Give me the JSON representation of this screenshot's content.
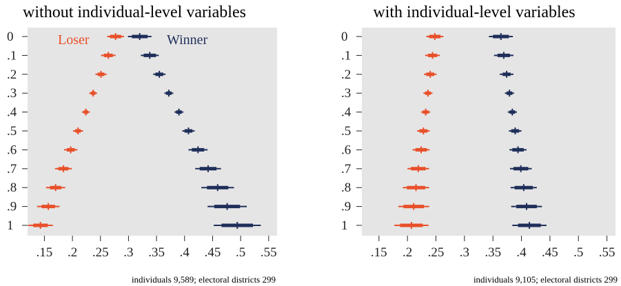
{
  "chart_data": [
    {
      "type": "scatter",
      "title": "without individual-level variables",
      "xlabel": "",
      "ylabel": "",
      "xlim": [
        0.12,
        0.565
      ],
      "x_ticks": [
        ".15",
        ".2",
        ".25",
        ".3",
        ".35",
        ".4",
        ".45",
        ".5",
        ".55"
      ],
      "x_tick_values": [
        0.15,
        0.2,
        0.25,
        0.3,
        0.35,
        0.4,
        0.45,
        0.5,
        0.55
      ],
      "y_ticks": [
        "0",
        ".1",
        ".2",
        ".3",
        ".4",
        ".5",
        ".6",
        ".7",
        ".8",
        ".9",
        "1"
      ],
      "legend_position": "top",
      "note": "individuals  9,589; electoral districts  299",
      "grid": false,
      "series": [
        {
          "name": "Loser",
          "color": "#e8502a",
          "estimates": [
            0.277,
            0.264,
            0.251,
            0.237,
            0.224,
            0.21,
            0.197,
            0.184,
            0.17,
            0.157,
            0.143
          ],
          "ci90": [
            [
              0.267,
              0.287
            ],
            [
              0.256,
              0.272
            ],
            [
              0.245,
              0.257
            ],
            [
              0.233,
              0.241
            ],
            [
              0.22,
              0.228
            ],
            [
              0.205,
              0.215
            ],
            [
              0.19,
              0.204
            ],
            [
              0.175,
              0.193
            ],
            [
              0.16,
              0.18
            ],
            [
              0.145,
              0.169
            ],
            [
              0.13,
              0.156
            ]
          ],
          "ci95": [
            [
              0.262,
              0.292
            ],
            [
              0.251,
              0.277
            ],
            [
              0.241,
              0.261
            ],
            [
              0.23,
              0.244
            ],
            [
              0.217,
              0.231
            ],
            [
              0.201,
              0.219
            ],
            [
              0.185,
              0.209
            ],
            [
              0.169,
              0.199
            ],
            [
              0.153,
              0.187
            ],
            [
              0.137,
              0.177
            ],
            [
              0.121,
              0.165
            ]
          ]
        },
        {
          "name": "Winner",
          "color": "#1f2f5a",
          "estimates": [
            0.32,
            0.338,
            0.355,
            0.372,
            0.39,
            0.407,
            0.424,
            0.442,
            0.459,
            0.476,
            0.494
          ],
          "ci90": [
            [
              0.306,
              0.334
            ],
            [
              0.327,
              0.349
            ],
            [
              0.348,
              0.362
            ],
            [
              0.367,
              0.377
            ],
            [
              0.385,
              0.395
            ],
            [
              0.4,
              0.414
            ],
            [
              0.413,
              0.435
            ],
            [
              0.427,
              0.457
            ],
            [
              0.44,
              0.478
            ],
            [
              0.453,
              0.499
            ],
            [
              0.466,
              0.522
            ]
          ],
          "ci95": [
            [
              0.299,
              0.341
            ],
            [
              0.322,
              0.354
            ],
            [
              0.344,
              0.366
            ],
            [
              0.364,
              0.38
            ],
            [
              0.382,
              0.398
            ],
            [
              0.396,
              0.418
            ],
            [
              0.407,
              0.441
            ],
            [
              0.419,
              0.465
            ],
            [
              0.43,
              0.488
            ],
            [
              0.441,
              0.511
            ],
            [
              0.452,
              0.536
            ]
          ]
        }
      ]
    },
    {
      "type": "scatter",
      "title": "with individual-level variables",
      "xlabel": "",
      "ylabel": "",
      "xlim": [
        0.12,
        0.565
      ],
      "x_ticks": [
        ".15",
        ".2",
        ".25",
        ".3",
        ".35",
        ".4",
        ".45",
        ".5",
        ".55"
      ],
      "x_tick_values": [
        0.15,
        0.2,
        0.25,
        0.3,
        0.35,
        0.4,
        0.45,
        0.5,
        0.55
      ],
      "y_ticks": [
        "0",
        ".1",
        ".2",
        ".3",
        ".4",
        ".5",
        ".6",
        ".7",
        ".8",
        ".9",
        "1"
      ],
      "note": "individuals  9,105; electoral districts  299",
      "grid": false,
      "series": [
        {
          "name": "Loser",
          "color": "#e8502a",
          "estimates": [
            0.248,
            0.244,
            0.24,
            0.236,
            0.232,
            0.228,
            0.224,
            0.219,
            0.215,
            0.211,
            0.207
          ],
          "ci90": [
            [
              0.238,
              0.258
            ],
            [
              0.236,
              0.252
            ],
            [
              0.233,
              0.247
            ],
            [
              0.231,
              0.241
            ],
            [
              0.227,
              0.237
            ],
            [
              0.221,
              0.235
            ],
            [
              0.214,
              0.234
            ],
            [
              0.206,
              0.232
            ],
            [
              0.199,
              0.231
            ],
            [
              0.193,
              0.229
            ],
            [
              0.187,
              0.227
            ]
          ],
          "ci95": [
            [
              0.233,
              0.263
            ],
            [
              0.231,
              0.257
            ],
            [
              0.229,
              0.251
            ],
            [
              0.228,
              0.244
            ],
            [
              0.224,
              0.24
            ],
            [
              0.217,
              0.239
            ],
            [
              0.209,
              0.239
            ],
            [
              0.2,
              0.238
            ],
            [
              0.192,
              0.238
            ],
            [
              0.184,
              0.238
            ],
            [
              0.177,
              0.237
            ]
          ]
        },
        {
          "name": "Winner",
          "color": "#1f2f5a",
          "estimates": [
            0.364,
            0.369,
            0.374,
            0.379,
            0.384,
            0.389,
            0.394,
            0.399,
            0.404,
            0.409,
            0.414
          ],
          "ci90": [
            [
              0.35,
              0.378
            ],
            [
              0.358,
              0.38
            ],
            [
              0.367,
              0.381
            ],
            [
              0.374,
              0.384
            ],
            [
              0.379,
              0.389
            ],
            [
              0.382,
              0.396
            ],
            [
              0.384,
              0.404
            ],
            [
              0.386,
              0.412
            ],
            [
              0.388,
              0.42
            ],
            [
              0.391,
              0.427
            ],
            [
              0.394,
              0.434
            ]
          ],
          "ci95": [
            [
              0.343,
              0.385
            ],
            [
              0.352,
              0.386
            ],
            [
              0.362,
              0.386
            ],
            [
              0.371,
              0.387
            ],
            [
              0.376,
              0.392
            ],
            [
              0.378,
              0.4
            ],
            [
              0.379,
              0.409
            ],
            [
              0.38,
              0.418
            ],
            [
              0.381,
              0.427
            ],
            [
              0.382,
              0.436
            ],
            [
              0.384,
              0.444
            ]
          ]
        }
      ]
    }
  ]
}
